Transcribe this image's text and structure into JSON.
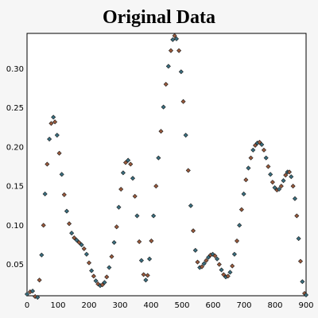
{
  "chart_data": {
    "type": "scatter",
    "title": "Original Data",
    "xlabel": "",
    "ylabel": "",
    "xlim": [
      0,
      900
    ],
    "ylim": [
      0.01,
      0.345
    ],
    "xticks": [
      0,
      100,
      200,
      300,
      400,
      500,
      600,
      700,
      800,
      900
    ],
    "xtick_labels": [
      "0",
      "100",
      "200",
      "300",
      "400",
      "500",
      "600",
      "700",
      "800",
      "900"
    ],
    "yticks": [
      0.05,
      0.1,
      0.15,
      0.2,
      0.25,
      0.3
    ],
    "ytick_labels": [
      "0.05",
      "0.10",
      "0.15",
      "0.20",
      "0.25",
      "0.30"
    ],
    "grid": true,
    "marker": "diamond",
    "marker_colors": [
      "#3a6f80",
      "#9a5a3c"
    ],
    "points": [
      [
        0,
        0.012
      ],
      [
        10,
        0.015
      ],
      [
        18,
        0.016
      ],
      [
        26,
        0.009
      ],
      [
        34,
        0.008
      ],
      [
        40,
        0.03
      ],
      [
        47,
        0.062
      ],
      [
        53,
        0.1
      ],
      [
        58,
        0.14
      ],
      [
        65,
        0.178
      ],
      [
        72,
        0.21
      ],
      [
        78,
        0.23
      ],
      [
        85,
        0.238
      ],
      [
        90,
        0.232
      ],
      [
        97,
        0.215
      ],
      [
        104,
        0.192
      ],
      [
        112,
        0.165
      ],
      [
        120,
        0.139
      ],
      [
        128,
        0.118
      ],
      [
        136,
        0.102
      ],
      [
        144,
        0.09
      ],
      [
        152,
        0.084
      ],
      [
        160,
        0.081
      ],
      [
        168,
        0.078
      ],
      [
        176,
        0.075
      ],
      [
        184,
        0.07
      ],
      [
        192,
        0.063
      ],
      [
        200,
        0.052
      ],
      [
        208,
        0.042
      ],
      [
        215,
        0.035
      ],
      [
        222,
        0.029
      ],
      [
        229,
        0.025
      ],
      [
        236,
        0.023
      ],
      [
        243,
        0.024
      ],
      [
        250,
        0.027
      ],
      [
        257,
        0.034
      ],
      [
        265,
        0.046
      ],
      [
        273,
        0.06
      ],
      [
        281,
        0.078
      ],
      [
        289,
        0.098
      ],
      [
        296,
        0.123
      ],
      [
        303,
        0.146
      ],
      [
        310,
        0.167
      ],
      [
        318,
        0.18
      ],
      [
        326,
        0.183
      ],
      [
        334,
        0.178
      ],
      [
        341,
        0.16
      ],
      [
        348,
        0.137
      ],
      [
        355,
        0.112
      ],
      [
        362,
        0.079
      ],
      [
        369,
        0.055
      ],
      [
        376,
        0.037
      ],
      [
        383,
        0.03
      ],
      [
        389,
        0.036
      ],
      [
        395,
        0.057
      ],
      [
        401,
        0.08
      ],
      [
        408,
        0.112
      ],
      [
        416,
        0.15
      ],
      [
        424,
        0.186
      ],
      [
        432,
        0.22
      ],
      [
        440,
        0.251
      ],
      [
        448,
        0.28
      ],
      [
        456,
        0.303
      ],
      [
        464,
        0.323
      ],
      [
        470,
        0.337
      ],
      [
        476,
        0.342
      ],
      [
        482,
        0.338
      ],
      [
        490,
        0.323
      ],
      [
        497,
        0.296
      ],
      [
        504,
        0.258
      ],
      [
        512,
        0.215
      ],
      [
        520,
        0.17
      ],
      [
        528,
        0.125
      ],
      [
        536,
        0.093
      ],
      [
        543,
        0.068
      ],
      [
        550,
        0.053
      ],
      [
        557,
        0.046
      ],
      [
        564,
        0.047
      ],
      [
        571,
        0.051
      ],
      [
        578,
        0.055
      ],
      [
        585,
        0.059
      ],
      [
        592,
        0.062
      ],
      [
        599,
        0.063
      ],
      [
        606,
        0.061
      ],
      [
        613,
        0.057
      ],
      [
        620,
        0.05
      ],
      [
        627,
        0.043
      ],
      [
        634,
        0.037
      ],
      [
        641,
        0.034
      ],
      [
        648,
        0.035
      ],
      [
        655,
        0.04
      ],
      [
        662,
        0.048
      ],
      [
        669,
        0.063
      ],
      [
        677,
        0.08
      ],
      [
        685,
        0.1
      ],
      [
        692,
        0.12
      ],
      [
        699,
        0.14
      ],
      [
        706,
        0.158
      ],
      [
        714,
        0.173
      ],
      [
        722,
        0.186
      ],
      [
        729,
        0.196
      ],
      [
        736,
        0.202
      ],
      [
        743,
        0.205
      ],
      [
        750,
        0.206
      ],
      [
        757,
        0.203
      ],
      [
        764,
        0.196
      ],
      [
        771,
        0.186
      ],
      [
        778,
        0.175
      ],
      [
        785,
        0.165
      ],
      [
        792,
        0.155
      ],
      [
        799,
        0.148
      ],
      [
        806,
        0.145
      ],
      [
        813,
        0.146
      ],
      [
        820,
        0.15
      ],
      [
        827,
        0.157
      ],
      [
        834,
        0.164
      ],
      [
        840,
        0.168
      ],
      [
        846,
        0.168
      ],
      [
        852,
        0.162
      ],
      [
        858,
        0.15
      ],
      [
        864,
        0.134
      ],
      [
        870,
        0.112
      ],
      [
        876,
        0.083
      ],
      [
        882,
        0.054
      ],
      [
        888,
        0.028
      ],
      [
        895,
        0.013
      ],
      [
        900,
        0.011
      ]
    ]
  }
}
